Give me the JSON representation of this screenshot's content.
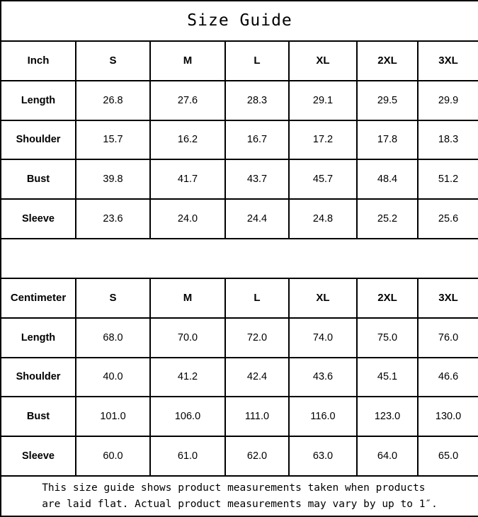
{
  "title": "Size Guide",
  "chart_data": [
    {
      "type": "table",
      "unit": "Inch",
      "columns": [
        "Inch",
        "S",
        "M",
        "L",
        "XL",
        "2XL",
        "3XL"
      ],
      "rows": [
        [
          "Length",
          "26.8",
          "27.6",
          "28.3",
          "29.1",
          "29.5",
          "29.9"
        ],
        [
          "Shoulder",
          "15.7",
          "16.2",
          "16.7",
          "17.2",
          "17.8",
          "18.3"
        ],
        [
          "Bust",
          "39.8",
          "41.7",
          "43.7",
          "45.7",
          "48.4",
          "51.2"
        ],
        [
          "Sleeve",
          "23.6",
          "24.0",
          "24.4",
          "24.8",
          "25.2",
          "25.6"
        ]
      ]
    },
    {
      "type": "table",
      "unit": "Centimeter",
      "columns": [
        "Centimeter",
        "S",
        "M",
        "L",
        "XL",
        "2XL",
        "3XL"
      ],
      "rows": [
        [
          "Length",
          "68.0",
          "70.0",
          "72.0",
          "74.0",
          "75.0",
          "76.0"
        ],
        [
          "Shoulder",
          "40.0",
          "41.2",
          "42.4",
          "43.6",
          "45.1",
          "46.6"
        ],
        [
          "Bust",
          "101.0",
          "106.0",
          "111.0",
          "116.0",
          "123.0",
          "130.0"
        ],
        [
          "Sleeve",
          "60.0",
          "61.0",
          "62.0",
          "63.0",
          "64.0",
          "65.0"
        ]
      ]
    }
  ],
  "footnote": {
    "line1": "This size guide shows product measurements taken when products",
    "line2": "are laid flat. Actual product measurements may vary by up to 1″."
  },
  "colors": {
    "border": "#000000",
    "background": "#ffffff",
    "text": "#000000"
  }
}
